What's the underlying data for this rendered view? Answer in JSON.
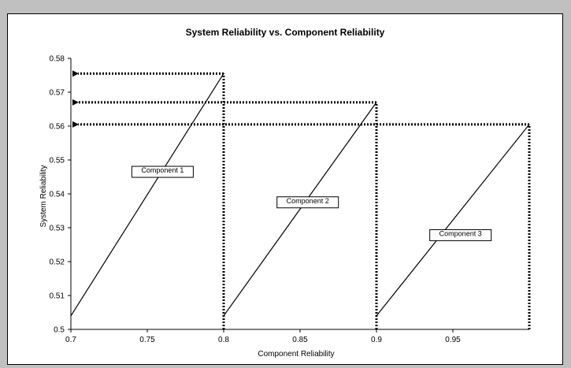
{
  "chart_data": {
    "type": "line",
    "title": "System Reliability vs. Component Reliability",
    "xlabel": "Component Reliability",
    "ylabel": "System Reliability",
    "xlim": [
      0.7,
      1.0
    ],
    "ylim": [
      0.5,
      0.58
    ],
    "xticks": [
      "0.7",
      "0.75",
      "0.8",
      "0.85",
      "0.9",
      "0.95"
    ],
    "yticks": [
      "0.5",
      "0.51",
      "0.52",
      "0.53",
      "0.54",
      "0.55",
      "0.56",
      "0.57",
      "0.58"
    ],
    "series": [
      {
        "x": [
          0.7,
          0.8
        ],
        "y": [
          0.504,
          0.5755
        ]
      },
      {
        "x": [
          0.8,
          0.9
        ],
        "y": [
          0.504,
          0.567
        ]
      },
      {
        "x": [
          0.9,
          1.0
        ],
        "y": [
          0.504,
          0.5605
        ]
      }
    ],
    "reference_lines": [
      {
        "x": 0.8,
        "y": 0.5755
      },
      {
        "x": 0.9,
        "y": 0.567
      },
      {
        "x": 1.0,
        "y": 0.5605
      }
    ],
    "annotations": [
      {
        "text": "Component 1",
        "x": 0.76,
        "y": 0.5465
      },
      {
        "text": "Component 2",
        "x": 0.855,
        "y": 0.5375
      },
      {
        "text": "Component 3",
        "x": 0.955,
        "y": 0.5278
      }
    ],
    "grid": false,
    "legend": "none"
  }
}
